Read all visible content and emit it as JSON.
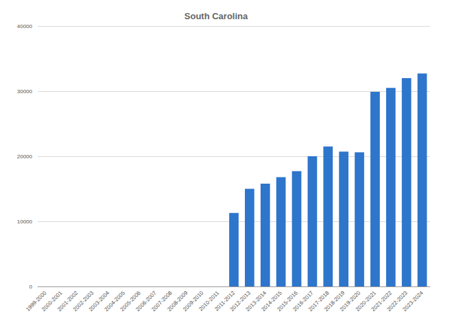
{
  "chart_data": {
    "type": "bar",
    "title": "South Carolina",
    "categories": [
      "1999-2000",
      "2000-2001",
      "2001-2002",
      "2002-2003",
      "2003-2004",
      "2004-2005",
      "2005-2006",
      "2006-2007",
      "2007-2008",
      "2008-2009",
      "2009-2010",
      "2010-2011",
      "2011-2012",
      "2012-2013",
      "2013-2014",
      "2014-2015",
      "2015-2016",
      "2016-2017",
      "2017-2018",
      "2018-2019",
      "2019-2020",
      "2020-2021",
      "2021-2022",
      "2022-2023",
      "2023-2024"
    ],
    "values": [
      null,
      null,
      null,
      null,
      null,
      null,
      null,
      null,
      null,
      null,
      null,
      null,
      11300,
      15000,
      15800,
      16800,
      17700,
      20000,
      21500,
      20700,
      20600,
      29900,
      30500,
      32000,
      32700
    ],
    "color": "#2e75cc",
    "ylim": [
      0,
      40000
    ],
    "yticks": [
      0,
      10000,
      20000,
      30000,
      40000
    ],
    "grid": true
  }
}
